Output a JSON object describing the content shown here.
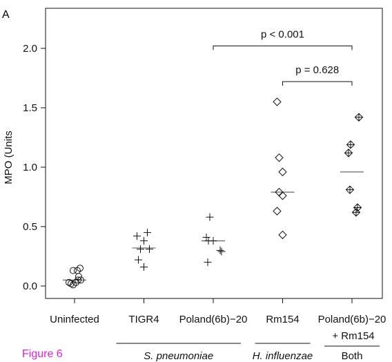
{
  "panel_label": "A",
  "figure_label": "Figure 6",
  "colors": {
    "figure_label": "#e020e0",
    "ink": "#111111",
    "median": "#666666"
  },
  "chart_data": {
    "type": "scatter",
    "ylabel": "MPO (Units",
    "ylim": [
      -0.1,
      2.35
    ],
    "yticks": [
      "0.0",
      "0.5",
      "1.0",
      "1.5",
      "2.0"
    ],
    "categories": [
      "Uninfected",
      "TIGR4",
      "Poland(6b)−20",
      "Rm154",
      "Poland(6b)−20"
    ],
    "category_prefix": {
      "4": "+ Rm154"
    },
    "groups": [
      {
        "label": "S. pneumoniae",
        "from": 1,
        "to": 2,
        "italic": true
      },
      {
        "label": "H. influenzae",
        "from": 3,
        "to": 3,
        "italic": true
      },
      {
        "label": "Both",
        "from": 4,
        "to": 4,
        "italic": false
      }
    ],
    "series": [
      {
        "category": 0,
        "marker": "circle",
        "points": [
          [
            -0.08,
            0.03
          ],
          [
            -0.05,
            0.02
          ],
          [
            -0.02,
            0.01
          ],
          [
            0.02,
            0.03
          ],
          [
            0.05,
            0.05
          ],
          [
            0.09,
            0.05
          ],
          [
            -0.02,
            0.13
          ],
          [
            0.04,
            0.13
          ],
          [
            0.08,
            0.15
          ],
          [
            0.06,
            0.08
          ]
        ],
        "median": 0.05
      },
      {
        "category": 1,
        "marker": "plus",
        "points": [
          [
            -0.1,
            0.42
          ],
          [
            0.0,
            0.38
          ],
          [
            0.05,
            0.45
          ],
          [
            -0.05,
            0.31
          ],
          [
            0.08,
            0.31
          ],
          [
            -0.08,
            0.22
          ],
          [
            0.0,
            0.16
          ]
        ],
        "median": 0.32
      },
      {
        "category": 2,
        "marker": "plus",
        "points": [
          [
            -0.05,
            0.58
          ],
          [
            -0.1,
            0.41
          ],
          [
            -0.07,
            0.38
          ],
          [
            0.0,
            0.38
          ],
          [
            0.1,
            0.3
          ],
          [
            0.12,
            0.29
          ],
          [
            -0.08,
            0.2
          ]
        ],
        "median": 0.38
      },
      {
        "category": 3,
        "marker": "diamond",
        "points": [
          [
            -0.08,
            1.55
          ],
          [
            -0.05,
            1.08
          ],
          [
            0.0,
            0.96
          ],
          [
            -0.05,
            0.79
          ],
          [
            0.0,
            0.76
          ],
          [
            -0.08,
            0.63
          ],
          [
            0.0,
            0.43
          ]
        ],
        "median": 0.79
      },
      {
        "category": 4,
        "marker": "diamond-plus",
        "points": [
          [
            0.1,
            1.42
          ],
          [
            -0.02,
            1.19
          ],
          [
            -0.05,
            1.12
          ],
          [
            -0.03,
            0.81
          ],
          [
            0.08,
            0.66
          ],
          [
            0.06,
            0.62
          ]
        ],
        "median": 0.96
      }
    ],
    "annotations": [
      {
        "text": "p < 0.001",
        "from": 2,
        "to": 4,
        "y": 2.02
      },
      {
        "text": "p = 0.628",
        "from": 3,
        "to": 4,
        "y": 1.72
      }
    ]
  }
}
